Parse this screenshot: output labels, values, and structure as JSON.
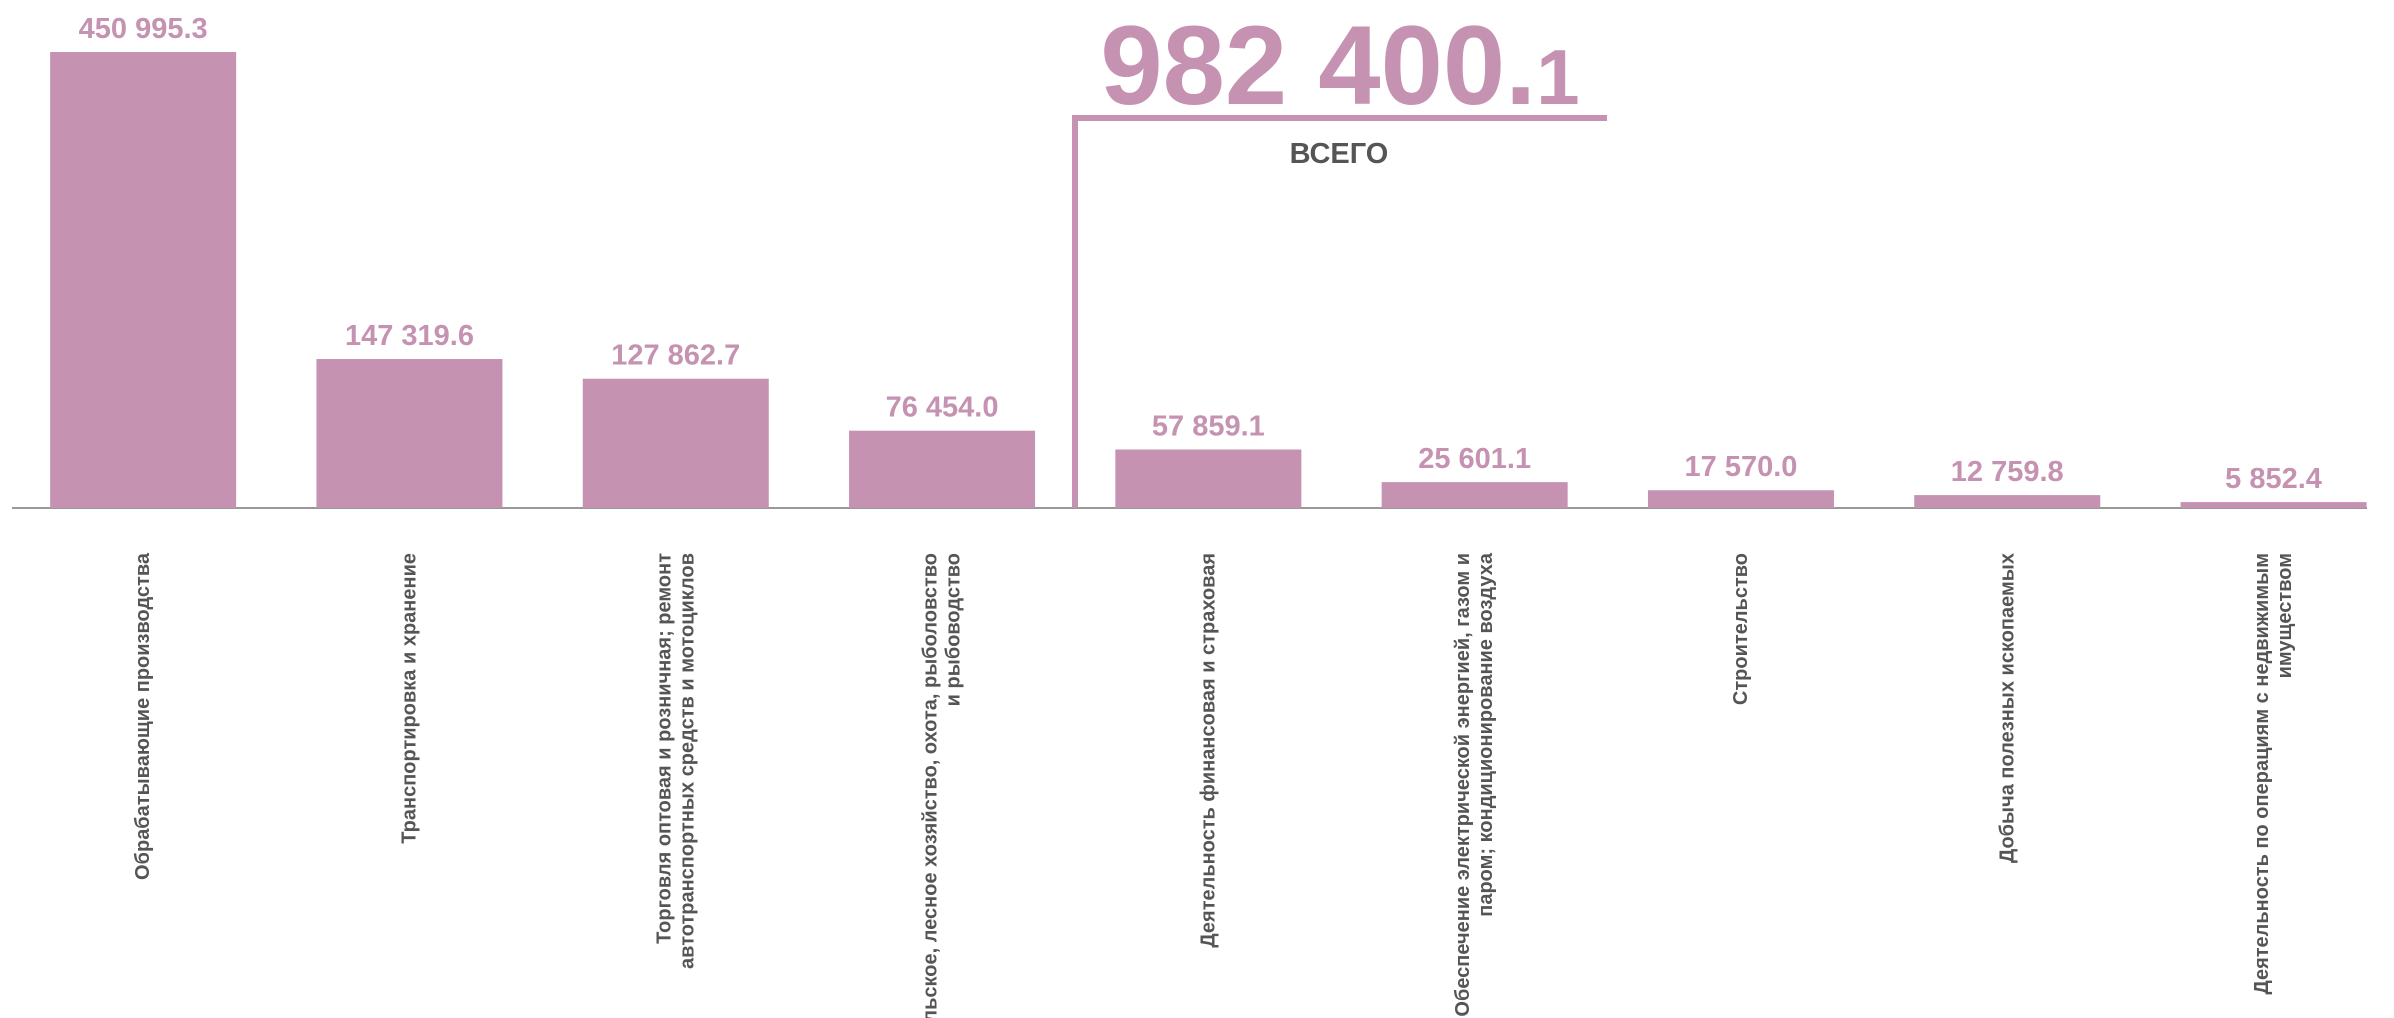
{
  "chart_data": {
    "type": "bar",
    "categories": [
      [
        "Обрабатывающие производства"
      ],
      [
        "Транспортировка и хранение"
      ],
      [
        "Торговля оптовая и розничная; ремонт",
        "автотранспортных средств и мотоциклов"
      ],
      [
        "Сельское, лесное хозяйство, охота, рыболовство",
        "и рыбоводство"
      ],
      [
        "Деятельность финансовая и страховая"
      ],
      [
        "Обеспечение электрической энергией, газом и",
        "паром; кондиционирование воздуха"
      ],
      [
        "Строительство"
      ],
      [
        "Добыча полезных ископаемых"
      ],
      [
        "Деятельность по операциям с недвижимым",
        "имуществом"
      ]
    ],
    "values": [
      450995.3,
      147319.6,
      127862.7,
      76454.0,
      57859.1,
      25601.1,
      17570.0,
      12759.8,
      5852.4
    ],
    "value_labels": [
      "450 995.3",
      "147 319.6",
      "127 862.7",
      "76 454.0",
      "57 859.1",
      "25 601.1",
      "17 570.0",
      "12 759.8",
      "5 852.4"
    ],
    "color": "#c592b1",
    "total_label": "982 400.1",
    "total_caption": "ВСЕГО"
  }
}
